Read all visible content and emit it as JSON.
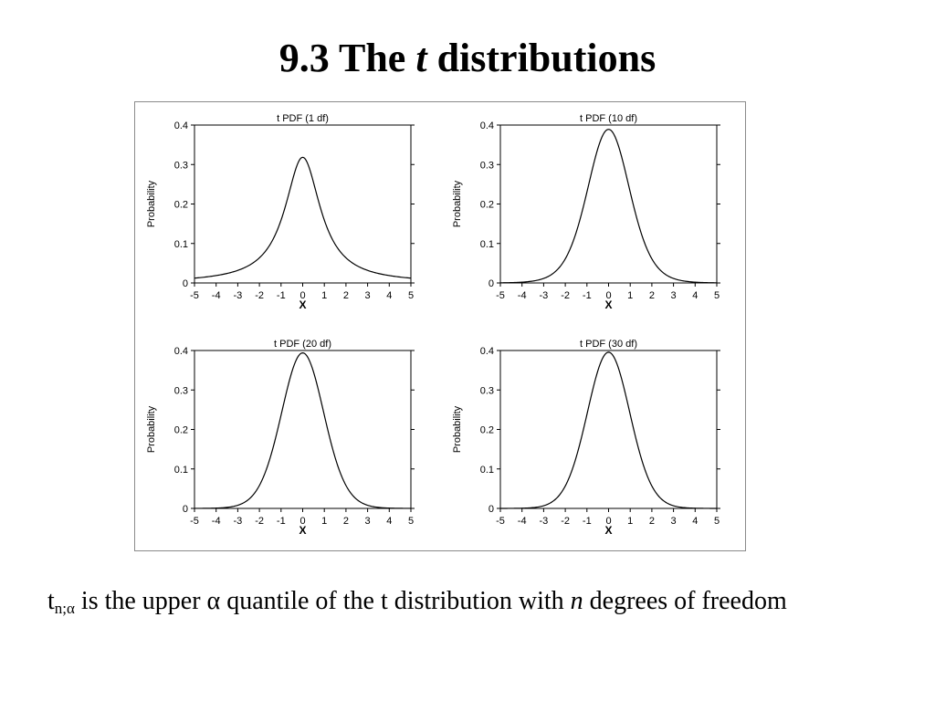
{
  "slide": {
    "title_prefix": "9.3 The",
    "title_italic": "t",
    "title_suffix": "distributions",
    "caption": {
      "t": "t",
      "subscript": "n;α",
      "part1": "is the upper α quantile of the t distribution with",
      "italic_n": "n",
      "part2": "degrees of freedom"
    }
  },
  "chart_data": [
    {
      "type": "line",
      "title": "t PDF (1 df)",
      "xlabel": "X",
      "ylabel": "Probability",
      "df": 1,
      "xlim": [
        -5,
        5
      ],
      "ylim": [
        0,
        0.4
      ],
      "xticks": [
        -5,
        -4,
        -3,
        -2,
        -1,
        0,
        1,
        2,
        3,
        4,
        5
      ],
      "yticks": [
        0,
        0.1,
        0.2,
        0.3,
        0.4
      ],
      "series": [
        {
          "x": [
            -5,
            -4,
            -3,
            -2.5,
            -2,
            -1.5,
            -1,
            -0.5,
            0,
            0.5,
            1,
            1.5,
            2,
            2.5,
            3,
            4,
            5
          ],
          "y": [
            0.012,
            0.019,
            0.032,
            0.044,
            0.064,
            0.098,
            0.159,
            0.255,
            0.318,
            0.255,
            0.159,
            0.098,
            0.064,
            0.044,
            0.032,
            0.019,
            0.012
          ]
        }
      ]
    },
    {
      "type": "line",
      "title": "t PDF (10 df)",
      "xlabel": "X",
      "ylabel": "Probability",
      "df": 10,
      "xlim": [
        -5,
        5
      ],
      "ylim": [
        0,
        0.4
      ],
      "xticks": [
        -5,
        -4,
        -3,
        -2,
        -1,
        0,
        1,
        2,
        3,
        4,
        5
      ],
      "yticks": [
        0,
        0.1,
        0.2,
        0.3,
        0.4
      ],
      "series": [
        {
          "x": [
            -5,
            -4,
            -3,
            -2.5,
            -2,
            -1.5,
            -1,
            -0.5,
            0,
            0.5,
            1,
            1.5,
            2,
            2.5,
            3,
            4,
            5
          ],
          "y": [
            0.0004,
            0.002,
            0.011,
            0.025,
            0.061,
            0.127,
            0.23,
            0.34,
            0.389,
            0.34,
            0.23,
            0.127,
            0.061,
            0.025,
            0.011,
            0.002,
            0.0004
          ]
        }
      ]
    },
    {
      "type": "line",
      "title": "t PDF (20 df)",
      "xlabel": "X",
      "ylabel": "Probability",
      "df": 20,
      "xlim": [
        -5,
        5
      ],
      "ylim": [
        0,
        0.4
      ],
      "xticks": [
        -5,
        -4,
        -3,
        -2,
        -1,
        0,
        1,
        2,
        3,
        4,
        5
      ],
      "yticks": [
        0,
        0.1,
        0.2,
        0.3,
        0.4
      ],
      "series": [
        {
          "x": [
            -5,
            -4,
            -3,
            -2.5,
            -2,
            -1.5,
            -1,
            -0.5,
            0,
            0.5,
            1,
            1.5,
            2,
            2.5,
            3,
            4,
            5
          ],
          "y": [
            0.0001,
            0.0007,
            0.0068,
            0.021,
            0.058,
            0.128,
            0.236,
            0.347,
            0.394,
            0.347,
            0.236,
            0.128,
            0.058,
            0.021,
            0.0068,
            0.0007,
            0.0001
          ]
        }
      ]
    },
    {
      "type": "line",
      "title": "t PDF (30 df)",
      "xlabel": "X",
      "ylabel": "Probability",
      "df": 30,
      "xlim": [
        -5,
        5
      ],
      "ylim": [
        0,
        0.4
      ],
      "xticks": [
        -5,
        -4,
        -3,
        -2,
        -1,
        0,
        1,
        2,
        3,
        4,
        5
      ],
      "yticks": [
        0,
        0.1,
        0.2,
        0.3,
        0.4
      ],
      "series": [
        {
          "x": [
            -5,
            -4,
            -3,
            -2.5,
            -2,
            -1.5,
            -1,
            -0.5,
            0,
            0.5,
            1,
            1.5,
            2,
            2.5,
            3,
            4,
            5
          ],
          "y": [
            5e-05,
            0.0004,
            0.0058,
            0.0195,
            0.057,
            0.128,
            0.238,
            0.349,
            0.396,
            0.349,
            0.238,
            0.128,
            0.057,
            0.0195,
            0.0058,
            0.0004,
            5e-05
          ]
        }
      ]
    }
  ]
}
